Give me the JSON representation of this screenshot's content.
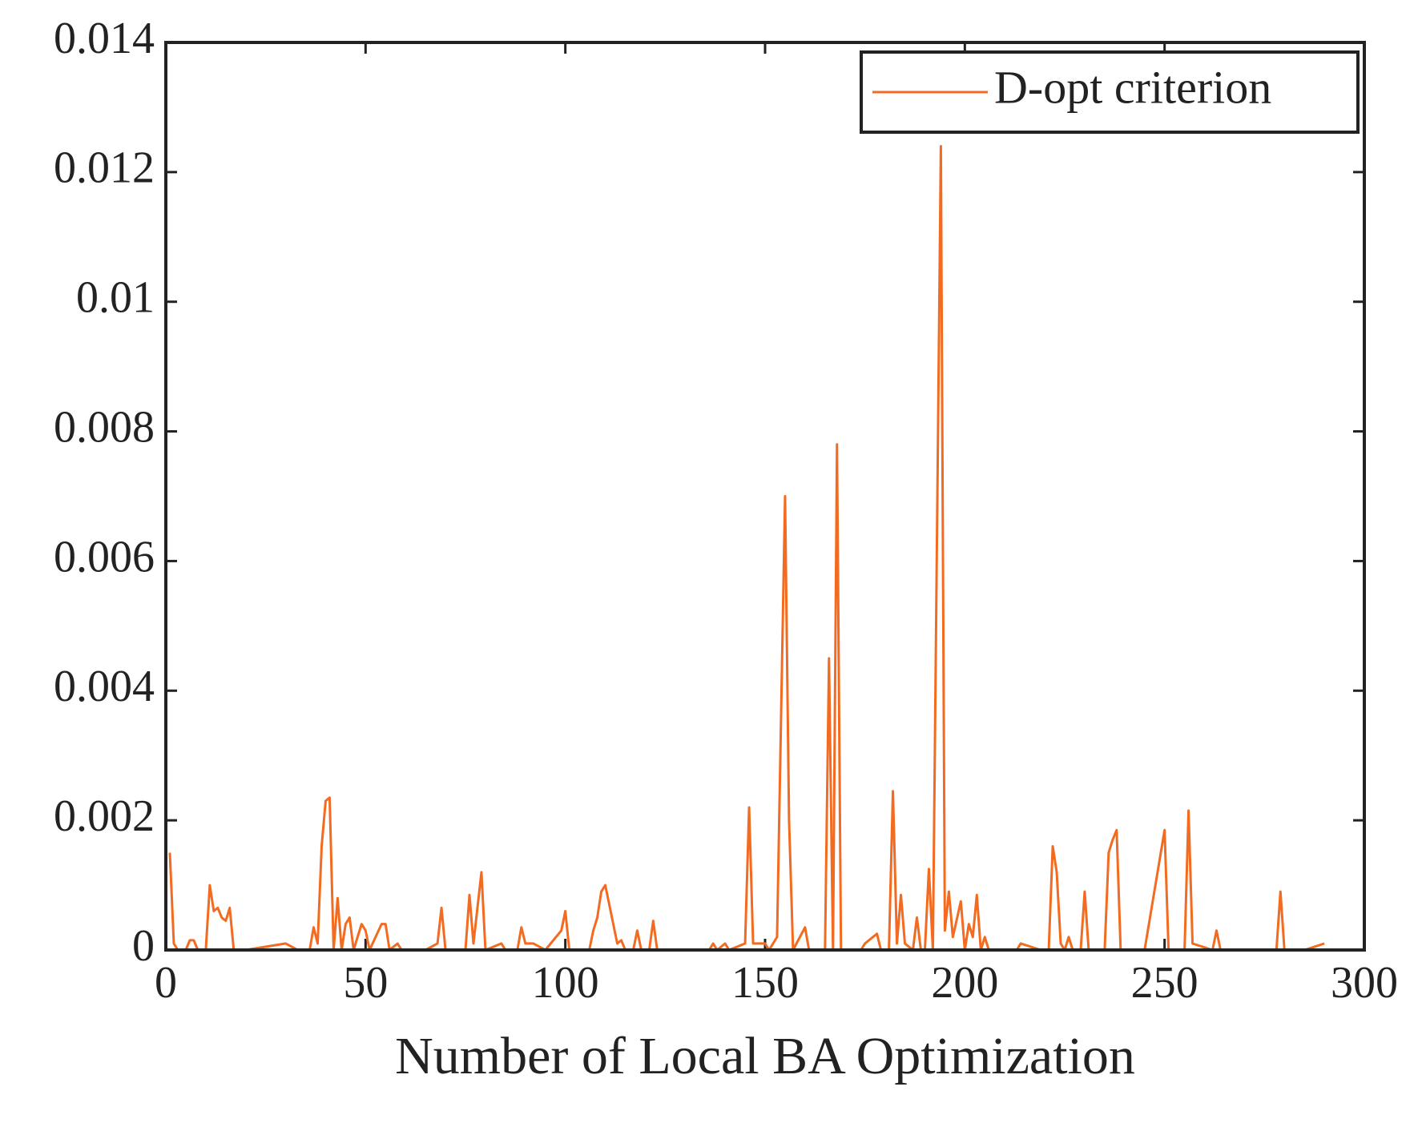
{
  "chart_data": {
    "type": "line",
    "xlabel": "Number of Local BA Optimization",
    "x": [
      1,
      2,
      3,
      5,
      6,
      7,
      8,
      10,
      11,
      12,
      13,
      14,
      15,
      16,
      17,
      20,
      30,
      33,
      36,
      37,
      38,
      39,
      40,
      41,
      42,
      43,
      44,
      45,
      46,
      47,
      49,
      50,
      51,
      54,
      55,
      56,
      58,
      59,
      65,
      68,
      69,
      70,
      75,
      76,
      77,
      79,
      80,
      84,
      85,
      88,
      89,
      90,
      92,
      95,
      99,
      100,
      101,
      106,
      107,
      108,
      109,
      110,
      111,
      112,
      113,
      114,
      115,
      117,
      118,
      119,
      121,
      122,
      123,
      136,
      137,
      138,
      140,
      141,
      145,
      146,
      147,
      150,
      151,
      153,
      155,
      156,
      157,
      160,
      161,
      165,
      166,
      167,
      168,
      169,
      174,
      175,
      178,
      179,
      181,
      182,
      183,
      184,
      185,
      187,
      188,
      189,
      190,
      191,
      192,
      194,
      195,
      196,
      197,
      199,
      200,
      201,
      202,
      203,
      204,
      205,
      206,
      213,
      214,
      219,
      221,
      222,
      223,
      224,
      225,
      226,
      227,
      229,
      230,
      231,
      235,
      236,
      237,
      238,
      239,
      245,
      250,
      251,
      255,
      256,
      257,
      262,
      263,
      264,
      270,
      278,
      279,
      280,
      285,
      290
    ],
    "series": [
      {
        "name": "D-opt criterion",
        "color": "#f26b21",
        "values": [
          0.0015,
          0.0001,
          0,
          0,
          0.00015,
          0.00015,
          0,
          0,
          0.001,
          0.0006,
          0.00065,
          0.0005,
          0.00045,
          0.00065,
          0,
          0,
          0.0001,
          0,
          0,
          0.00035,
          0.0001,
          0.0016,
          0.0023,
          0.00235,
          0,
          0.0008,
          0,
          0.0004,
          0.0005,
          0,
          0.0004,
          0.0003,
          0,
          0.0004,
          0.0004,
          0,
          0.0001,
          0,
          0,
          0.0001,
          0.00065,
          0,
          0,
          0.00085,
          0.0001,
          0.0012,
          0,
          0.0001,
          0,
          0,
          0.00035,
          0.0001,
          0.0001,
          0,
          0.0003,
          0.0006,
          0,
          0,
          0.0003,
          0.0005,
          0.0009,
          0.001,
          0.0007,
          0.0004,
          0.0001,
          0.00015,
          0,
          0,
          0.0003,
          0,
          0,
          0.00045,
          0,
          0,
          0.0001,
          0,
          0.0001,
          0,
          0.0001,
          0.0022,
          0.0001,
          0.0001,
          0,
          0.0002,
          0.007,
          0.002,
          0,
          0.00035,
          0,
          0,
          0.0045,
          0,
          0.0078,
          0,
          0,
          0.0001,
          0.00025,
          0,
          0,
          0.00245,
          0.0001,
          0.00085,
          0.0001,
          0,
          0.0005,
          0,
          0,
          0.00125,
          0,
          0.0124,
          0.0003,
          0.0009,
          0.0002,
          0.00075,
          0,
          0.0004,
          0.0002,
          0.00085,
          0,
          0.0002,
          0,
          0,
          0.0001,
          0,
          0,
          0.0016,
          0.0012,
          0.0001,
          0,
          0.0002,
          0,
          0,
          0.0009,
          0,
          0,
          0.0015,
          0.0017,
          0.00185,
          0,
          0,
          0.00185,
          0,
          0,
          0.00215,
          0.0001,
          0,
          0.0003,
          0,
          0,
          0,
          0.0009,
          0,
          0,
          0.0001
        ]
      }
    ],
    "xlim": [
      0,
      300
    ],
    "xticks": [
      0,
      50,
      100,
      150,
      200,
      250,
      300
    ],
    "ylim": [
      0,
      0.014
    ],
    "yticks": [
      0,
      0.002,
      0.004,
      0.006,
      0.008,
      0.01,
      0.012,
      0.014
    ],
    "legend": "upper right",
    "grid": false
  }
}
